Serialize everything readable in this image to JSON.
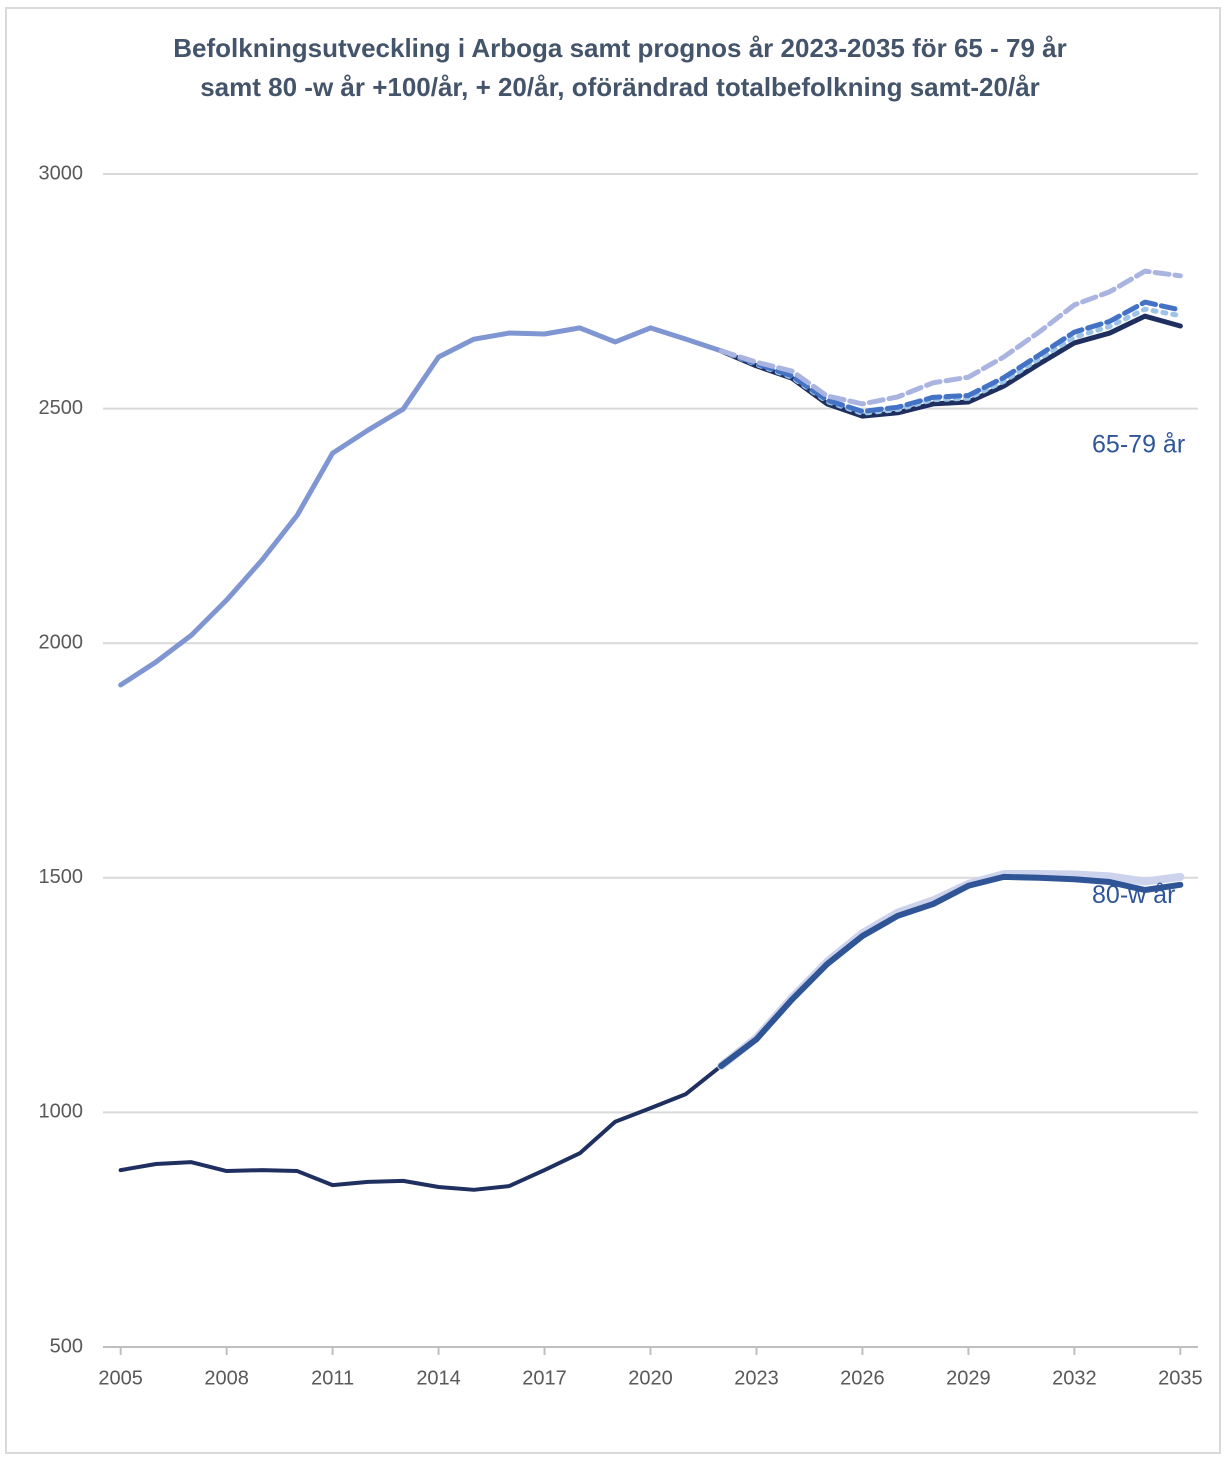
{
  "chart_data": {
    "type": "line",
    "title": [
      "Befolkningsutveckling i Arboga samt prognos år 2023-2035 för 65 - 79 år",
      "samt 80 -w år +100/år,  + 20/år, oförändrad  totalbefolkning samt-20/år"
    ],
    "annotations": [
      {
        "text": "65-79 år",
        "x": 2032.5,
        "y": 2420
      },
      {
        "text": "80-w år",
        "x": 2032.5,
        "y": 1460
      }
    ],
    "x": [
      2005,
      2006,
      2007,
      2008,
      2009,
      2010,
      2011,
      2012,
      2013,
      2014,
      2015,
      2016,
      2017,
      2018,
      2019,
      2020,
      2021,
      2022,
      2023,
      2024,
      2025,
      2026,
      2027,
      2028,
      2029,
      2030,
      2031,
      2032,
      2033,
      2034,
      2035
    ],
    "xlim": [
      2004.5,
      2035.5
    ],
    "xticks": [
      2005,
      2008,
      2011,
      2014,
      2017,
      2020,
      2023,
      2026,
      2029,
      2032,
      2035
    ],
    "ylim": [
      500,
      3000
    ],
    "yticks": [
      500,
      1000,
      1500,
      2000,
      2500,
      3000
    ],
    "grid": true,
    "series": [
      {
        "color": "#7f96d2",
        "line_width": 5,
        "style": "solid",
        "values": [
          1911,
          1960,
          2017,
          2092,
          2177,
          2273,
          2405,
          2454,
          2499,
          2610,
          2648,
          2661,
          2659,
          2672,
          2642,
          2672,
          2648,
          2623,
          null,
          null,
          null,
          null,
          null,
          null,
          null,
          null,
          null,
          null,
          null,
          null,
          null
        ]
      },
      {
        "color": "#1f3060",
        "line_width": 5,
        "style": "solid",
        "values": [
          null,
          null,
          null,
          null,
          null,
          null,
          null,
          null,
          null,
          null,
          null,
          null,
          null,
          null,
          null,
          null,
          null,
          2623,
          2591,
          2565,
          2510,
          2484,
          2491,
          2510,
          2514,
          2548,
          2595,
          2640,
          2661,
          2697,
          2676
        ]
      },
      {
        "color": "#9dc3e6",
        "line_width": 5,
        "style": "dotted",
        "values": [
          null,
          null,
          null,
          null,
          null,
          null,
          null,
          null,
          null,
          null,
          null,
          null,
          null,
          null,
          null,
          null,
          null,
          2623,
          2594,
          2567,
          2515,
          2490,
          2498,
          2519,
          2522,
          2558,
          2606,
          2652,
          2675,
          2712,
          2698
        ]
      },
      {
        "color": "#4472c4",
        "line_width": 5,
        "style": "dashed",
        "values": [
          null,
          null,
          null,
          null,
          null,
          null,
          null,
          null,
          null,
          null,
          null,
          null,
          null,
          null,
          null,
          null,
          null,
          2623,
          2596,
          2570,
          2518,
          2494,
          2503,
          2524,
          2528,
          2566,
          2614,
          2663,
          2686,
          2727,
          2710
        ]
      },
      {
        "color": "#a9b4e0",
        "line_width": 5,
        "style": "dashed",
        "values": [
          null,
          null,
          null,
          null,
          null,
          null,
          null,
          null,
          null,
          null,
          null,
          null,
          null,
          null,
          null,
          null,
          null,
          2623,
          2599,
          2580,
          2527,
          2510,
          2525,
          2555,
          2567,
          2610,
          2663,
          2721,
          2749,
          2793,
          2783
        ]
      },
      {
        "color": "#1f3060",
        "line_width": 4,
        "style": "solid",
        "values": [
          877,
          890,
          894,
          875,
          877,
          875,
          845,
          852,
          854,
          841,
          835,
          843,
          877,
          913,
          980,
          1009,
          1039,
          1099,
          null,
          null,
          null,
          null,
          null,
          null,
          null,
          null,
          null,
          null,
          null,
          null,
          null
        ]
      },
      {
        "color": "#cdd3ec",
        "line_width": 8,
        "style": "solid",
        "values": [
          null,
          null,
          null,
          null,
          null,
          null,
          null,
          null,
          null,
          null,
          null,
          null,
          null,
          null,
          null,
          null,
          null,
          1099,
          1159,
          1244,
          1321,
          1382,
          1426,
          1452,
          1487,
          1508,
          1508,
          1507,
          1503,
          1492,
          1502
        ]
      },
      {
        "color": "#2f5597",
        "line_width": 6,
        "style": "solid",
        "values": [
          null,
          null,
          null,
          null,
          null,
          null,
          null,
          null,
          null,
          null,
          null,
          null,
          null,
          null,
          null,
          null,
          null,
          1099,
          1156,
          1240,
          1316,
          1376,
          1419,
          1444,
          1483,
          1502,
          1500,
          1497,
          1491,
          1474,
          1485
        ]
      }
    ]
  }
}
